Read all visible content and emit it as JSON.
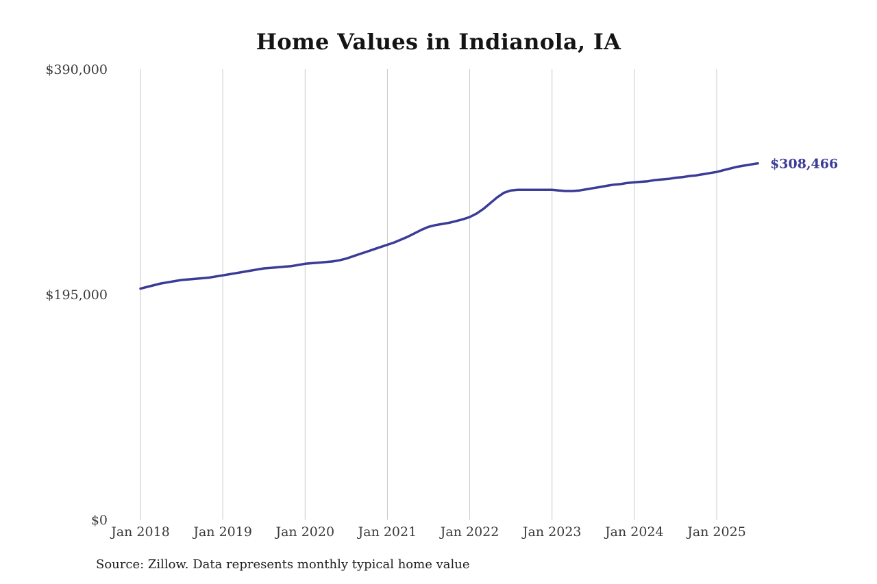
{
  "chart_data": {
    "type": "line",
    "title": "Home Values in Indianola, IA",
    "source_note": "Source: Zillow. Data represents monthly typical home value",
    "series_name": "Monthly typical home value",
    "line_color": "#3b3b98",
    "gridline_color": "#c9c9c9",
    "axis_text_color": "#3a3a3a",
    "end_label": "$308,466",
    "end_value": 308466,
    "ylim": [
      0,
      390000
    ],
    "y_ticks": [
      {
        "value": 0,
        "label": "$0"
      },
      {
        "value": 195000,
        "label": "$195,000"
      },
      {
        "value": 390000,
        "label": "$390,000"
      }
    ],
    "x_tick_labels": [
      "Jan 2018",
      "Jan 2019",
      "Jan 2020",
      "Jan 2021",
      "Jan 2022",
      "Jan 2023",
      "Jan 2024",
      "Jan 2025"
    ],
    "x_unit": "month",
    "x_start": "Jan 2018",
    "x_end": "Jul 2025",
    "grid": "vertical-only",
    "legend": "none",
    "values": [
      200000,
      201500,
      203000,
      204500,
      205500,
      206500,
      207500,
      208000,
      208500,
      209000,
      209500,
      210500,
      211500,
      212500,
      213500,
      214500,
      215500,
      216500,
      217500,
      218000,
      218500,
      219000,
      219500,
      220500,
      221500,
      222000,
      222500,
      223000,
      223500,
      224500,
      226000,
      228000,
      230000,
      232000,
      234000,
      236000,
      238000,
      240000,
      242500,
      245000,
      248000,
      251000,
      253500,
      255000,
      256000,
      257000,
      258500,
      260000,
      262000,
      265000,
      269000,
      274000,
      279000,
      283000,
      285000,
      285500,
      285500,
      285500,
      285500,
      285500,
      285500,
      285000,
      284500,
      284500,
      285000,
      286000,
      287000,
      288000,
      289000,
      290000,
      290500,
      291500,
      292000,
      292500,
      293000,
      294000,
      294500,
      295000,
      296000,
      296500,
      297500,
      298000,
      299000,
      300000,
      301000,
      302500,
      304000,
      305500,
      306500,
      307500,
      308466
    ]
  }
}
